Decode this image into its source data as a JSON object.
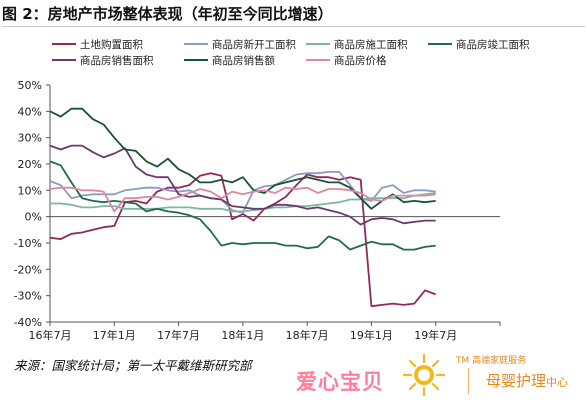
{
  "header": {
    "title": "图 2：房地产市场整体表现（年初至今同比增速）"
  },
  "source": "来源：国家统计局；第一太平戴维斯研究部",
  "watermark": {
    "left_text": "爱心宝贝",
    "tm_text": "TM 高端家庭服务",
    "right_main": "母婴护理",
    "right_small": "中心"
  },
  "chart_data": {
    "type": "line",
    "title": "",
    "xlabel": "",
    "ylabel": "",
    "ylim": [
      -40,
      50
    ],
    "yticks": [
      -40,
      -30,
      -20,
      -10,
      0,
      10,
      20,
      30,
      40,
      50
    ],
    "ytick_labels": [
      "-40%",
      "-30%",
      "-20%",
      "-10%",
      "0%",
      "10%",
      "20%",
      "30%",
      "40%",
      "50%"
    ],
    "xlim": [
      0,
      42
    ],
    "xticks": [
      0,
      6,
      12,
      18,
      24,
      30,
      36,
      42
    ],
    "xtick_labels": [
      "16年7月",
      "17年1月",
      "17年7月",
      "18年1月",
      "18年7月",
      "19年1月",
      "19年7月",
      ""
    ],
    "x": [
      0,
      1,
      2,
      3,
      4,
      5,
      6,
      7,
      8,
      9,
      10,
      11,
      12,
      13,
      14,
      15,
      16,
      17,
      18,
      19,
      20,
      21,
      22,
      23,
      24,
      25,
      26,
      27,
      28,
      29,
      30,
      31,
      32,
      33,
      34,
      35,
      36
    ],
    "grid": false,
    "legend_position": "top",
    "series": [
      {
        "name": "土地购置面积",
        "color": "#8e2a5e",
        "values": [
          -8,
          -8.5,
          -6.5,
          -6,
          -5,
          -4,
          -3.5,
          5.5,
          6,
          5,
          9.5,
          11,
          11,
          12,
          15.5,
          16.5,
          15.5,
          -1,
          1,
          -1.5,
          3,
          5,
          7.5,
          12,
          16,
          15,
          15,
          14,
          15,
          14,
          -34,
          -33.5,
          -33,
          -33.5,
          -33,
          -28,
          -29.5
        ]
      },
      {
        "name": "商品房新开工面积",
        "color": "#8a9bc4",
        "values": [
          13.5,
          12,
          7,
          8,
          8.5,
          8.5,
          8.5,
          10,
          10.5,
          11,
          11,
          10,
          9.5,
          10,
          8,
          7,
          6.5,
          2.5,
          1.5,
          10,
          11.5,
          12,
          14,
          16,
          16.5,
          16.5,
          17,
          17,
          12,
          7,
          6,
          11,
          12,
          9,
          10,
          10,
          9.5
        ]
      },
      {
        "name": "商品房施工面积",
        "color": "#7fb5a8",
        "values": [
          5,
          5,
          4.5,
          3.5,
          3.5,
          4,
          4,
          3,
          3,
          3,
          3,
          3.5,
          3.5,
          3.5,
          3,
          3,
          3,
          2,
          2,
          2.5,
          3,
          3.5,
          3.5,
          4,
          4,
          4.5,
          5,
          5.5,
          6.5,
          6.5,
          7,
          7,
          7,
          7,
          8,
          8.5,
          9
        ]
      },
      {
        "name": "商品房竣工面积",
        "color": "#1f6b4a",
        "values": [
          21,
          19.5,
          13,
          7,
          6,
          5.5,
          6,
          5.5,
          5,
          2,
          3,
          2,
          1.5,
          0.5,
          -1,
          -5.5,
          -11,
          -10,
          -10.5,
          -10,
          -10,
          -10,
          -11,
          -11,
          -12,
          -11.5,
          -7.5,
          -9,
          -12.5,
          -11,
          -9.5,
          -10.5,
          -10.5,
          -12.5,
          -12.5,
          -11.5,
          -11
        ]
      },
      {
        "name": "商品房销售面积",
        "color": "#6b3a6a",
        "values": [
          27,
          25.5,
          27,
          27,
          24.5,
          22.5,
          24,
          26,
          19,
          16,
          15,
          15,
          8.5,
          7.5,
          8,
          7,
          6.5,
          4,
          3.5,
          3,
          3,
          4.5,
          4.5,
          4,
          3,
          3.5,
          2.5,
          1.5,
          0,
          -3,
          -1,
          -0.5,
          -1,
          -2.5,
          -2,
          -1.5,
          -1.5
        ]
      },
      {
        "name": "商品房销售额",
        "color": "#1a5236",
        "values": [
          40,
          38,
          41,
          41,
          37,
          35,
          30,
          25.5,
          25,
          21,
          19,
          22,
          18,
          16,
          13,
          13,
          14,
          13,
          15,
          10,
          9,
          12,
          13,
          14,
          15,
          14,
          13,
          13,
          11,
          7,
          3,
          6,
          8.5,
          5.5,
          6,
          5.5,
          6
        ]
      },
      {
        "name": "商品房价格",
        "color": "#d98a9c",
        "values": [
          10.5,
          11,
          11,
          10,
          10,
          9.5,
          2,
          7,
          7,
          7.5,
          7.5,
          6.5,
          7.5,
          9,
          10.5,
          9.5,
          7,
          9.5,
          8.5,
          9.5,
          10,
          9,
          11,
          10.5,
          11,
          9,
          10.5,
          10.5,
          10,
          9,
          6.5,
          6,
          8,
          8,
          8,
          8,
          8.5
        ]
      }
    ]
  }
}
